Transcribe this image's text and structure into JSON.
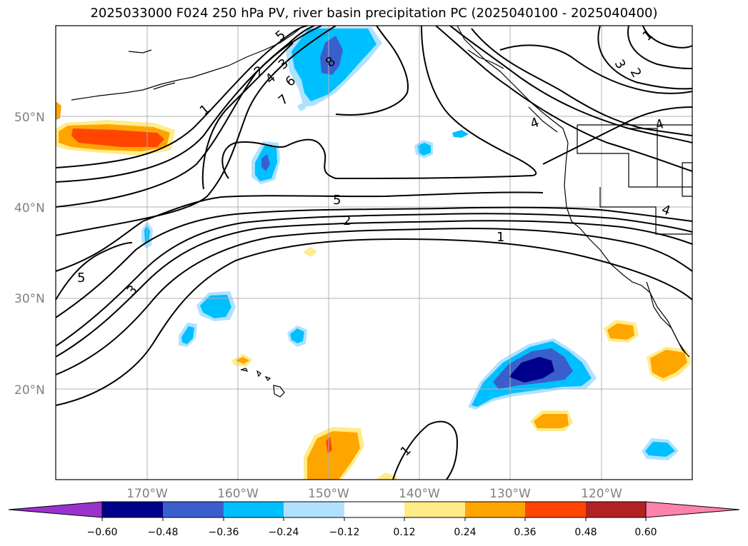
{
  "title": "2025033000 F024 250 hPa PV, river basin precipitation PC (2025040100 - 2025040400)",
  "lat_labels": [
    "50°N",
    "40°N",
    "30°N",
    "20°N"
  ],
  "lon_labels": [
    "170°W",
    "160°W",
    "150°W",
    "140°W",
    "130°W",
    "120°W"
  ],
  "colorbar": {
    "ticks": [
      "−0.60",
      "−0.48",
      "−0.36",
      "−0.24",
      "−0.12",
      "0.12",
      "0.24",
      "0.36",
      "0.48",
      "0.60"
    ],
    "colors": [
      "#9a32cd",
      "#00008b",
      "#3a5fcd",
      "#00bfff",
      "#b0e2ff",
      "#ffffff",
      "#ffec8b",
      "#ffa500",
      "#ff4500",
      "#b22222",
      "#ff82ab"
    ]
  },
  "contour_labels": [
    "1",
    "2",
    "3",
    "4",
    "5",
    "6",
    "7",
    "8",
    "5",
    "2",
    "1",
    "5",
    "3",
    "1",
    "4",
    "1",
    "3",
    "2",
    "4",
    "4"
  ],
  "colors": {
    "coast": "#000000",
    "contour": "#000000",
    "grid": "#b0b0b0"
  }
}
